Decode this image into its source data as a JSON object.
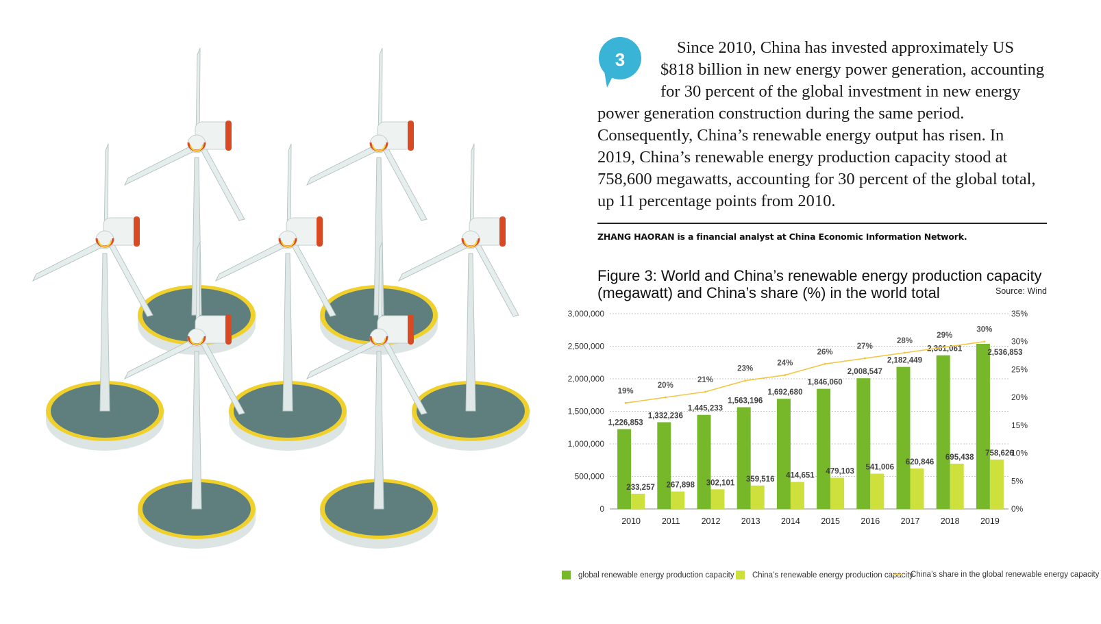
{
  "badge": {
    "number": "3"
  },
  "article": {
    "lines": [
      "Since 2010, China has invested approximately US",
      "$818 billion in new energy power generation, accounting",
      "for 30 percent of the global investment in new energy",
      "power generation construction during the same period.",
      "Consequently, China’s renewable energy output has risen. In",
      "2019, China’s renewable energy production capacity stood at",
      "758,600 megawatts, accounting for 30 percent of the global total,",
      "up 11 percentage points from 2010."
    ],
    "author_note": "ZHANG HAORAN is a financial analyst at China Economic Information Network."
  },
  "figure": {
    "title_line1": "Figure 3: World and China’s renewable energy production capacity",
    "title_line2": "(megawatt) and China’s share (%) in the world total",
    "source": "Source: Wind"
  },
  "colors": {
    "global_bar": "#76b82a",
    "china_bar": "#cde03c",
    "share_line": "#f2c744",
    "turbine_base": "#5e7f7d",
    "turbine_ring": "#f0d12b",
    "turbine_stripe": "#d94a22"
  },
  "chart_data": {
    "type": "bar",
    "categories": [
      "2010",
      "2011",
      "2012",
      "2013",
      "2014",
      "2015",
      "2016",
      "2017",
      "2018",
      "2019"
    ],
    "series": [
      {
        "name": "global renewable energy production capacity",
        "type": "bar",
        "values": [
          1226853,
          1332236,
          1445233,
          1563196,
          1692680,
          1846060,
          2008547,
          2182449,
          2361061,
          2536853
        ],
        "labels": [
          "1,226,853",
          "1,332,236",
          "1,445,233",
          "1,563,196",
          "1,692,680",
          "1,846,060",
          "2,008,547",
          "2,182,449",
          "2,361,061",
          "2,536,853"
        ]
      },
      {
        "name": "China’s renewable energy production capacity",
        "type": "bar",
        "values": [
          233257,
          267898,
          302101,
          359516,
          414651,
          479103,
          541006,
          620846,
          695438,
          758626
        ],
        "labels": [
          "233,257",
          "267,898",
          "302,101",
          "359,516",
          "414,651",
          "479,103",
          "541,006",
          "620,846",
          "695,438",
          "758,626"
        ]
      },
      {
        "name": "China’s share in the global renewable energy capacity",
        "type": "line",
        "axis": "right",
        "values": [
          19,
          20,
          21,
          23,
          24,
          26,
          27,
          28,
          29,
          30
        ],
        "labels": [
          "19%",
          "20%",
          "21%",
          "23%",
          "24%",
          "26%",
          "27%",
          "28%",
          "29%",
          "30%"
        ]
      }
    ],
    "ylim": [
      0,
      3000000
    ],
    "yticks": [
      "0",
      "500,000",
      "1,000,000",
      "1,500,000",
      "2,000,000",
      "2,500,000",
      "3,000,000"
    ],
    "y2lim": [
      0,
      35
    ],
    "y2ticks": [
      "0%",
      "5%",
      "10%",
      "15%",
      "20%",
      "25%",
      "30%",
      "35%"
    ],
    "grid": true,
    "legend_position": "bottom"
  }
}
